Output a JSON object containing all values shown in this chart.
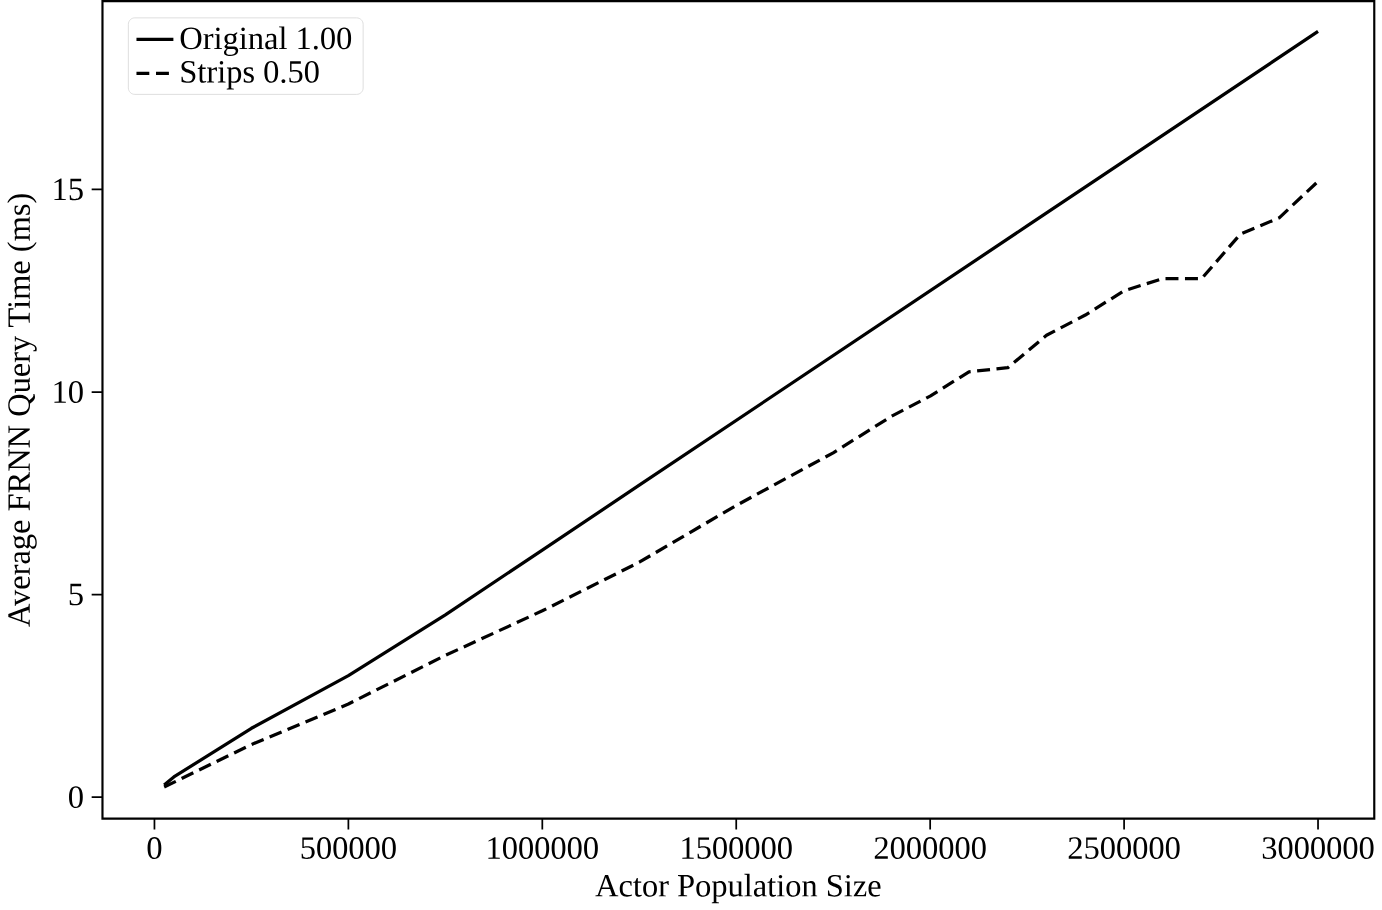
{
  "chart_data": {
    "type": "line",
    "xlabel": "Actor Population Size",
    "ylabel": "Average FRNN Query Time (ms)",
    "xlim": [
      -134000,
      3145000
    ],
    "ylim": [
      -0.53,
      19.65
    ],
    "xticks": [
      0,
      500000,
      1000000,
      1500000,
      2000000,
      2500000,
      3000000
    ],
    "yticks": [
      0,
      5,
      10,
      15
    ],
    "legend": "top left",
    "grid": false,
    "series": [
      {
        "name": "Original 1.00",
        "color": "#000000",
        "line_style": "solid",
        "x": [
          25000,
          50000,
          250000,
          500000,
          750000,
          1000000,
          1250000,
          1500000,
          1750000,
          2000000,
          2250000,
          2500000,
          2750000,
          3000000
        ],
        "values": [
          0.3,
          0.5,
          1.7,
          3.0,
          4.5,
          6.1,
          7.7,
          9.3,
          10.9,
          12.5,
          14.1,
          15.7,
          17.3,
          18.9
        ]
      },
      {
        "name": "Strips 0.50",
        "color": "#000000",
        "line_style": "dashed",
        "x": [
          25000,
          250000,
          500000,
          750000,
          1000000,
          1250000,
          1500000,
          1750000,
          1900000,
          2000000,
          2100000,
          2200000,
          2300000,
          2400000,
          2500000,
          2600000,
          2700000,
          2800000,
          2900000,
          3000000
        ],
        "values": [
          0.25,
          1.3,
          2.3,
          3.5,
          4.6,
          5.8,
          7.2,
          8.5,
          9.4,
          9.9,
          10.5,
          10.6,
          11.4,
          11.9,
          12.5,
          12.8,
          12.8,
          13.9,
          14.3,
          15.2
        ]
      }
    ]
  }
}
